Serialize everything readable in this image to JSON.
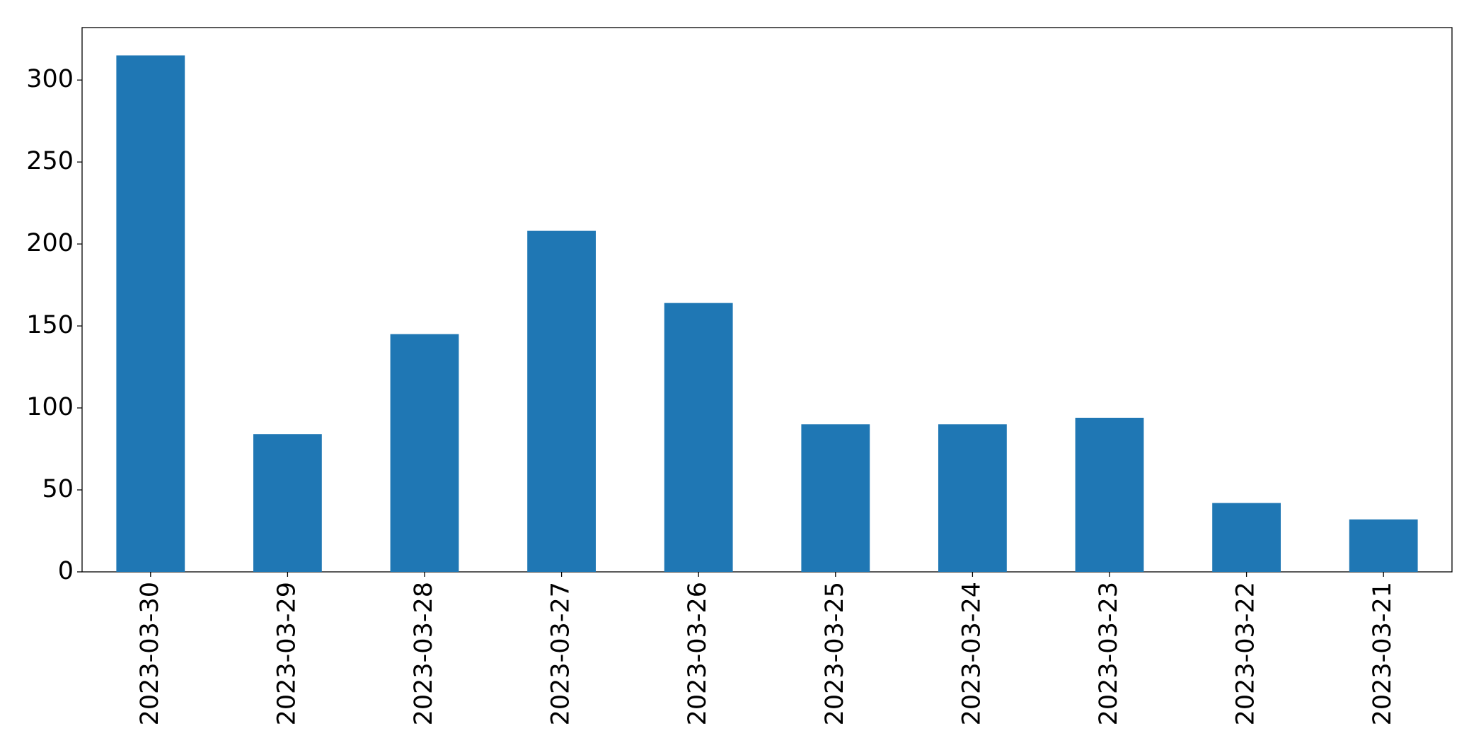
{
  "chart_data": {
    "type": "bar",
    "categories": [
      "2023-03-30",
      "2023-03-29",
      "2023-03-28",
      "2023-03-27",
      "2023-03-26",
      "2023-03-25",
      "2023-03-24",
      "2023-03-23",
      "2023-03-22",
      "2023-03-21"
    ],
    "values": [
      315,
      84,
      145,
      208,
      164,
      90,
      90,
      94,
      42,
      32
    ],
    "color": "#1f77b4",
    "ylim": [
      0,
      332
    ],
    "yticks": [
      0,
      50,
      100,
      150,
      200,
      250,
      300
    ],
    "grid": false
  }
}
